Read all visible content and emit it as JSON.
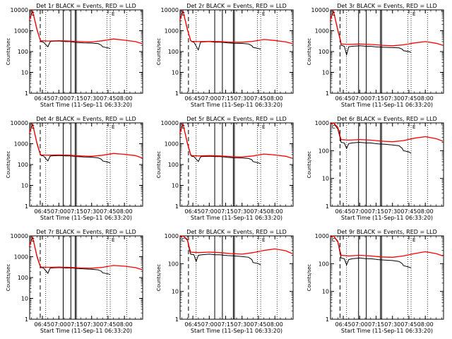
{
  "chart_data": [
    {
      "type": "line",
      "title": "Det 1r BLACK = Events, RED = LLD",
      "xlabel": "Start Time (11-Sep-11 06:33:20)",
      "ylabel": "Counts/sec",
      "yscale": "log",
      "ylim": [
        1,
        10000
      ],
      "yticklabels": [
        "1",
        "10",
        "100",
        "1000",
        "10000"
      ],
      "xlim": [
        "06:33:20",
        "08:16:40"
      ],
      "xticklabels": [
        "06:45",
        "07:00",
        "07:15",
        "07:30",
        "07:45",
        "08:00"
      ],
      "series": [
        {
          "color": "#000000",
          "x": [
            "06:33",
            "06:36",
            "06:40",
            "06:43",
            "06:44",
            "06:46",
            "06:50",
            "06:52",
            "06:53",
            "07:00",
            "07:06",
            "07:10",
            "07:14",
            "07:17",
            "07:23",
            "07:30",
            "07:36",
            "07:39",
            "07:40",
            "07:45",
            "07:47"
          ],
          "values": [
            3000,
            9000,
            1100,
            350,
            300,
            280,
            170,
            290,
            310,
            320,
            300,
            300,
            280,
            270,
            260,
            255,
            240,
            200,
            170,
            150,
            140
          ]
        },
        {
          "color": "#ff0000",
          "x": [
            "06:33",
            "06:36",
            "06:40",
            "06:43",
            "06:44",
            "06:50",
            "07:00",
            "07:10",
            "07:20",
            "07:30",
            "07:40",
            "07:50",
            "08:00",
            "08:10",
            "08:16"
          ],
          "values": [
            3000,
            9000,
            1200,
            350,
            330,
            320,
            330,
            320,
            300,
            290,
            330,
            400,
            350,
            300,
            240
          ]
        }
      ]
    },
    {
      "type": "line",
      "title": "Det 2r BLACK = Events, RED = LLD",
      "xlabel": "Start Time (11-Sep-11 06:33:20)",
      "ylabel": "Counts/sec",
      "yscale": "log",
      "ylim": [
        1,
        10000
      ],
      "yticklabels": [
        "1",
        "10",
        "100",
        "1000",
        "10000"
      ],
      "xlim": [
        "06:33:20",
        "08:16:40"
      ],
      "xticklabels": [
        "06:45",
        "07:00",
        "07:15",
        "07:30",
        "07:45",
        "08:00"
      ],
      "series": [
        {
          "color": "#000000",
          "x": [
            "06:33",
            "06:36",
            "06:40",
            "06:43",
            "06:44",
            "06:46",
            "06:50",
            "06:52",
            "06:53",
            "07:00",
            "07:06",
            "07:10",
            "07:14",
            "07:17",
            "07:23",
            "07:30",
            "07:36",
            "07:39",
            "07:40",
            "07:45",
            "07:47"
          ],
          "values": [
            3000,
            9000,
            1100,
            350,
            300,
            280,
            120,
            280,
            290,
            300,
            280,
            280,
            270,
            260,
            250,
            245,
            230,
            190,
            160,
            140,
            130
          ]
        },
        {
          "color": "#ff0000",
          "x": [
            "06:33",
            "06:36",
            "06:40",
            "06:43",
            "06:44",
            "06:50",
            "07:00",
            "07:10",
            "07:20",
            "07:30",
            "07:40",
            "07:50",
            "08:00",
            "08:10",
            "08:16"
          ],
          "values": [
            3000,
            9000,
            1200,
            330,
            310,
            300,
            310,
            300,
            280,
            280,
            310,
            380,
            340,
            290,
            240
          ]
        }
      ]
    },
    {
      "type": "line",
      "title": "Det 3r BLACK = Events, RED = LLD",
      "xlabel": "Start Time (11-Sep-11 06:33:20)",
      "ylabel": "Counts/sec",
      "yscale": "log",
      "ylim": [
        1,
        10000
      ],
      "yticklabels": [
        "1",
        "10",
        "100",
        "1000",
        "10000"
      ],
      "xlim": [
        "06:33:20",
        "08:16:40"
      ],
      "xticklabels": [
        "06:45",
        "07:00",
        "07:15",
        "07:30",
        "07:45",
        "08:00"
      ],
      "series": [
        {
          "color": "#000000",
          "x": [
            "06:33",
            "06:36",
            "06:40",
            "06:42",
            "06:43",
            "06:46",
            "06:48",
            "06:50",
            "06:53",
            "07:00",
            "07:06",
            "07:10",
            "07:14",
            "07:17",
            "07:23",
            "07:30",
            "07:36",
            "07:39",
            "07:40",
            "07:45",
            "07:47"
          ],
          "values": [
            3000,
            9000,
            1000,
            400,
            200,
            180,
            70,
            170,
            180,
            190,
            180,
            180,
            170,
            165,
            160,
            155,
            150,
            130,
            110,
            100,
            90
          ]
        },
        {
          "color": "#ff0000",
          "x": [
            "06:33",
            "06:36",
            "06:40",
            "06:42",
            "06:43",
            "06:50",
            "07:00",
            "07:10",
            "07:20",
            "07:30",
            "07:40",
            "07:50",
            "08:00",
            "08:10",
            "08:16"
          ],
          "values": [
            3000,
            9000,
            1100,
            450,
            230,
            220,
            230,
            220,
            200,
            190,
            210,
            260,
            300,
            250,
            200
          ]
        }
      ]
    },
    {
      "type": "line",
      "title": "Det 4r BLACK = Events, RED = LLD",
      "xlabel": "Start Time (11-Sep-11 06:33:20)",
      "ylabel": "Counts/sec",
      "yscale": "log",
      "ylim": [
        1,
        10000
      ],
      "yticklabels": [
        "1",
        "10",
        "100",
        "1000",
        "10000"
      ],
      "xlim": [
        "06:33:20",
        "08:16:40"
      ],
      "xticklabels": [
        "06:45",
        "07:00",
        "07:15",
        "07:30",
        "07:45",
        "08:00"
      ],
      "series": [
        {
          "color": "#000000",
          "x": [
            "06:33",
            "06:36",
            "06:40",
            "06:43",
            "06:44",
            "06:46",
            "06:50",
            "06:52",
            "06:53",
            "07:00",
            "07:06",
            "07:10",
            "07:14",
            "07:17",
            "07:23",
            "07:30",
            "07:36",
            "07:39",
            "07:40",
            "07:45",
            "07:47"
          ],
          "values": [
            3000,
            9000,
            1000,
            300,
            270,
            260,
            150,
            250,
            260,
            270,
            260,
            260,
            250,
            240,
            230,
            225,
            210,
            180,
            150,
            130,
            120
          ]
        },
        {
          "color": "#ff0000",
          "x": [
            "06:33",
            "06:36",
            "06:40",
            "06:43",
            "06:44",
            "06:50",
            "07:00",
            "07:10",
            "07:20",
            "07:30",
            "07:40",
            "07:50",
            "08:00",
            "08:10",
            "08:16"
          ],
          "values": [
            3000,
            9000,
            1100,
            320,
            290,
            280,
            290,
            280,
            260,
            250,
            280,
            340,
            310,
            270,
            210
          ]
        }
      ]
    },
    {
      "type": "line",
      "title": "Det 5r BLACK = Events, RED = LLD",
      "xlabel": "Start Time (11-Sep-11 06:33:20)",
      "ylabel": "Counts/sec",
      "yscale": "log",
      "ylim": [
        1,
        10000
      ],
      "yticklabels": [
        "1",
        "10",
        "100",
        "1000",
        "10000"
      ],
      "xlim": [
        "06:33:20",
        "08:16:40"
      ],
      "xticklabels": [
        "06:45",
        "07:00",
        "07:15",
        "07:30",
        "07:45",
        "08:00"
      ],
      "series": [
        {
          "color": "#000000",
          "x": [
            "06:33",
            "06:36",
            "06:40",
            "06:43",
            "06:44",
            "06:46",
            "06:50",
            "06:52",
            "06:53",
            "07:00",
            "07:06",
            "07:10",
            "07:14",
            "07:17",
            "07:23",
            "07:30",
            "07:36",
            "07:39",
            "07:40",
            "07:45",
            "07:47"
          ],
          "values": [
            3000,
            9000,
            1000,
            280,
            250,
            240,
            140,
            230,
            240,
            250,
            240,
            240,
            230,
            220,
            210,
            205,
            195,
            170,
            140,
            120,
            110
          ]
        },
        {
          "color": "#ff0000",
          "x": [
            "06:33",
            "06:36",
            "06:40",
            "06:43",
            "06:44",
            "06:50",
            "07:00",
            "07:10",
            "07:20",
            "07:30",
            "07:40",
            "07:50",
            "08:00",
            "08:10",
            "08:16"
          ],
          "values": [
            3000,
            9000,
            1100,
            300,
            270,
            260,
            270,
            260,
            240,
            230,
            260,
            320,
            290,
            250,
            200
          ]
        }
      ]
    },
    {
      "type": "line",
      "title": "Det 6r BLACK = Events, RED = LLD",
      "xlabel": "Start Time (11-Sep-11 06:33:20)",
      "ylabel": "Counts/sec",
      "yscale": "log",
      "ylim": [
        1,
        1000
      ],
      "yticklabels": [
        "1",
        "10",
        "100",
        "1000"
      ],
      "xlim": [
        "06:33:20",
        "08:16:40"
      ],
      "xticklabels": [
        "06:45",
        "07:00",
        "07:15",
        "07:30",
        "07:45",
        "08:00"
      ],
      "series": [
        {
          "color": "#000000",
          "x": [
            "06:33",
            "06:36",
            "06:40",
            "06:42",
            "06:43",
            "06:46",
            "06:48",
            "06:50",
            "06:53",
            "07:00",
            "07:06",
            "07:10",
            "07:14",
            "07:17",
            "07:23",
            "07:30",
            "07:36",
            "07:39",
            "07:40",
            "07:45",
            "07:47"
          ],
          "values": [
            900,
            1000,
            600,
            300,
            200,
            190,
            120,
            180,
            190,
            200,
            190,
            190,
            180,
            175,
            170,
            160,
            150,
            120,
            100,
            90,
            80
          ]
        },
        {
          "color": "#ff0000",
          "x": [
            "06:33",
            "06:36",
            "06:40",
            "06:42",
            "06:43",
            "06:50",
            "07:00",
            "07:10",
            "07:20",
            "07:30",
            "07:40",
            "07:50",
            "08:00",
            "08:10",
            "08:16"
          ],
          "values": [
            900,
            1000,
            700,
            350,
            250,
            240,
            250,
            240,
            220,
            210,
            230,
            280,
            320,
            270,
            220
          ]
        }
      ]
    },
    {
      "type": "line",
      "title": "Det 7r BLACK = Events, RED = LLD",
      "xlabel": "Start Time (11-Sep-11 06:33:20)",
      "ylabel": "Counts/sec",
      "yscale": "log",
      "ylim": [
        1,
        10000
      ],
      "yticklabels": [
        "1",
        "10",
        "100",
        "1000",
        "10000"
      ],
      "xlim": [
        "06:33:20",
        "08:16:40"
      ],
      "xticklabels": [
        "06:45",
        "07:00",
        "07:15",
        "07:30",
        "07:45",
        "08:00"
      ],
      "series": [
        {
          "color": "#000000",
          "x": [
            "06:33",
            "06:36",
            "06:40",
            "06:43",
            "06:44",
            "06:46",
            "06:50",
            "06:52",
            "06:53",
            "07:00",
            "07:06",
            "07:10",
            "07:14",
            "07:17",
            "07:23",
            "07:30",
            "07:36",
            "07:39",
            "07:40",
            "07:45",
            "07:47"
          ],
          "values": [
            3000,
            9000,
            1000,
            330,
            300,
            290,
            160,
            280,
            290,
            300,
            290,
            290,
            280,
            270,
            260,
            250,
            235,
            200,
            170,
            150,
            140
          ]
        },
        {
          "color": "#ff0000",
          "x": [
            "06:33",
            "06:36",
            "06:40",
            "06:43",
            "06:44",
            "06:50",
            "07:00",
            "07:10",
            "07:20",
            "07:30",
            "07:40",
            "07:50",
            "08:00",
            "08:10",
            "08:16"
          ],
          "values": [
            3000,
            9000,
            1100,
            350,
            320,
            310,
            320,
            310,
            290,
            280,
            310,
            380,
            350,
            300,
            240
          ]
        }
      ]
    },
    {
      "type": "line",
      "title": "Det 8r BLACK = Events, RED = LLD",
      "xlabel": "Start Time (11-Sep-11 06:33:20)",
      "ylabel": "Counts/sec",
      "yscale": "log",
      "ylim": [
        1,
        1000
      ],
      "yticklabels": [
        "1",
        "10",
        "100",
        "1000"
      ],
      "xlim": [
        "06:33:20",
        "08:16:40"
      ],
      "xticklabels": [
        "06:45",
        "07:00",
        "07:15",
        "07:30",
        "07:45",
        "08:00"
      ],
      "series": [
        {
          "color": "#000000",
          "x": [
            "06:33",
            "06:36",
            "06:40",
            "06:42",
            "06:43",
            "06:46",
            "06:48",
            "06:50",
            "06:53",
            "07:00",
            "07:06",
            "07:10",
            "07:14",
            "07:17",
            "07:23",
            "07:30",
            "07:36",
            "07:39",
            "07:40",
            "07:45",
            "07:47"
          ],
          "values": [
            900,
            1000,
            700,
            300,
            220,
            210,
            120,
            200,
            210,
            220,
            210,
            210,
            200,
            195,
            190,
            180,
            170,
            140,
            110,
            100,
            90
          ]
        },
        {
          "color": "#ff0000",
          "x": [
            "06:33",
            "06:36",
            "06:40",
            "06:42",
            "06:43",
            "06:50",
            "07:00",
            "07:10",
            "07:20",
            "07:30",
            "07:40",
            "07:50",
            "08:00",
            "08:10",
            "08:16"
          ],
          "values": [
            900,
            1000,
            750,
            350,
            260,
            250,
            260,
            250,
            230,
            220,
            250,
            300,
            340,
            290,
            230
          ]
        }
      ]
    },
    {
      "type": "line",
      "title": "Det 9r BLACK = Events, RED = LLD",
      "xlabel": "Start Time (11-Sep-11 06:33:20)",
      "ylabel": "Counts/sec",
      "yscale": "log",
      "ylim": [
        1,
        1000
      ],
      "yticklabels": [
        "1",
        "10",
        "100",
        "1000"
      ],
      "xlim": [
        "06:33:20",
        "08:16:40"
      ],
      "xticklabels": [
        "06:45",
        "07:00",
        "07:15",
        "07:30",
        "07:45",
        "08:00"
      ],
      "series": [
        {
          "color": "#000000",
          "x": [
            "06:33",
            "06:36",
            "06:40",
            "06:42",
            "06:43",
            "06:46",
            "06:48",
            "06:50",
            "06:53",
            "07:00",
            "07:06",
            "07:10",
            "07:14",
            "07:17",
            "07:23",
            "07:30",
            "07:36",
            "07:39",
            "07:40",
            "07:45",
            "07:47"
          ],
          "values": [
            900,
            1000,
            600,
            250,
            160,
            150,
            90,
            140,
            150,
            160,
            150,
            150,
            145,
            140,
            135,
            130,
            120,
            100,
            85,
            75,
            70
          ]
        },
        {
          "color": "#ff0000",
          "x": [
            "06:33",
            "06:36",
            "06:40",
            "06:42",
            "06:43",
            "06:50",
            "07:00",
            "07:10",
            "07:20",
            "07:30",
            "07:40",
            "07:50",
            "08:00",
            "08:10",
            "08:16"
          ],
          "values": [
            900,
            1000,
            650,
            300,
            200,
            190,
            200,
            190,
            175,
            170,
            190,
            230,
            270,
            230,
            190
          ]
        }
      ]
    }
  ]
}
